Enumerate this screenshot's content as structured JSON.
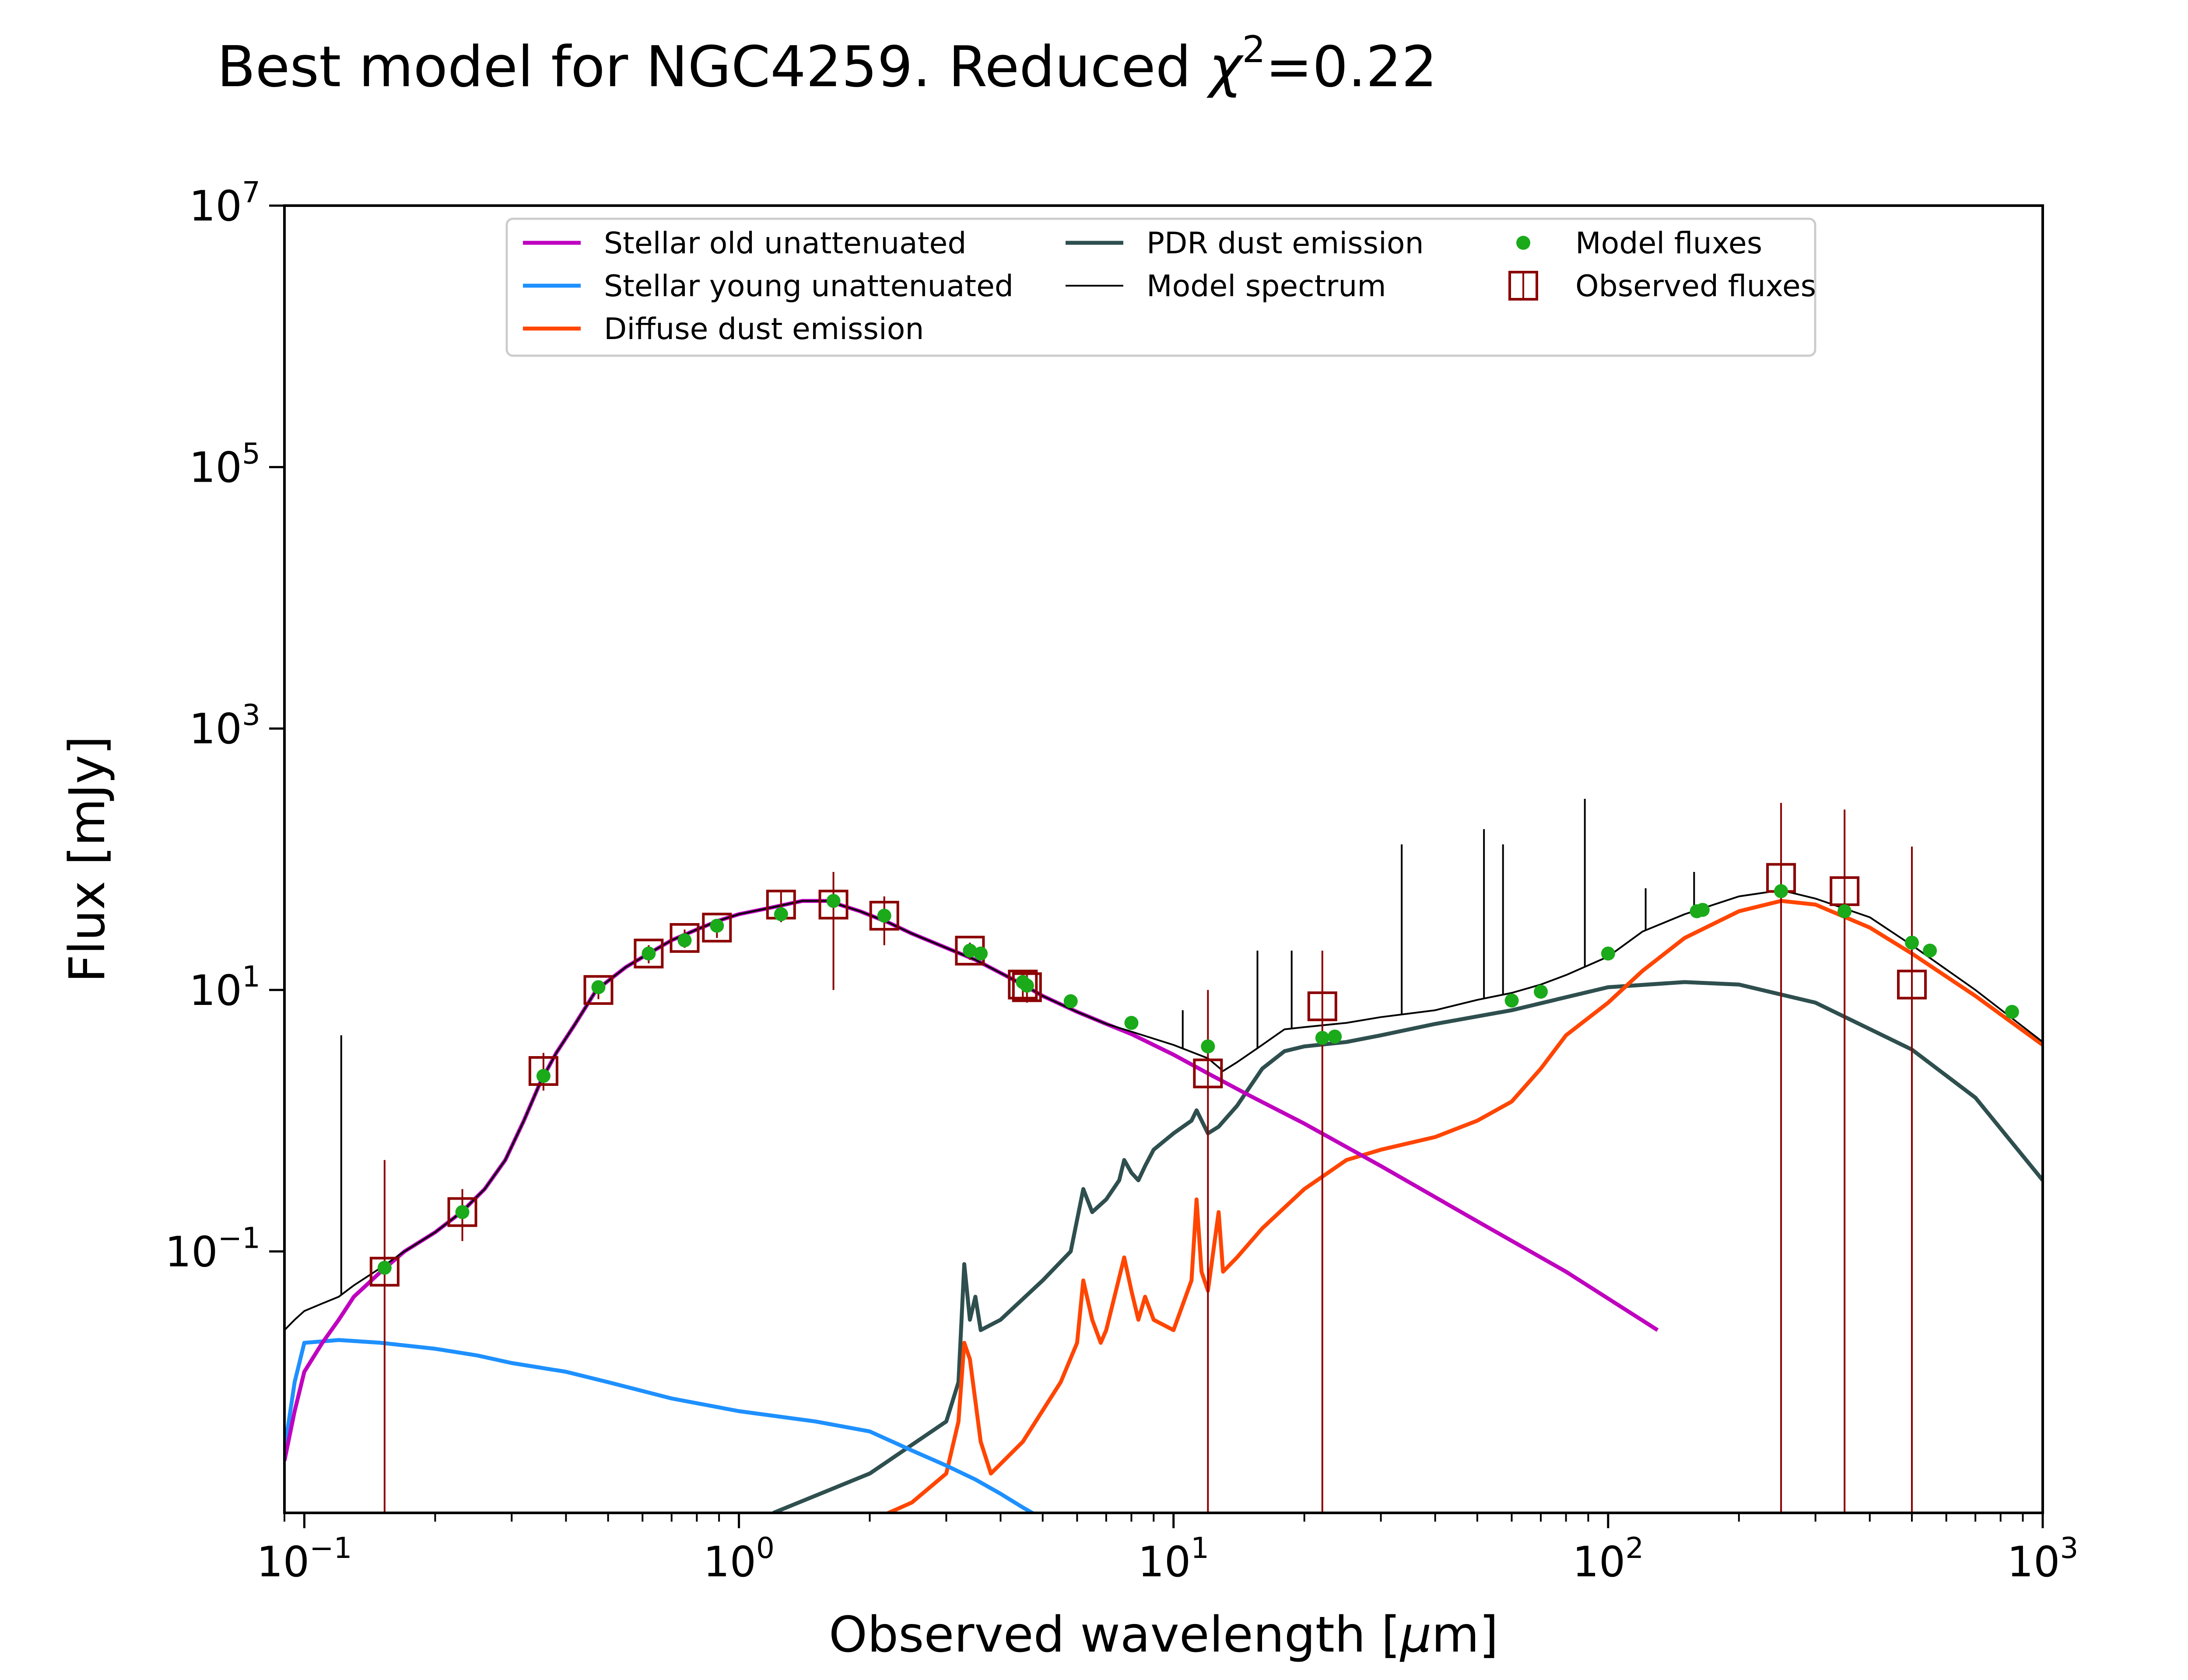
{
  "chart_data": {
    "type": "line",
    "title": "Best model for NGC4259. Reduced χ²=0.22",
    "title_parts": {
      "prefix": "Best model for NGC4259. Reduced ",
      "chi": "χ",
      "exp": "2",
      "suffix": "=0.22"
    },
    "xlabel": "Observed wavelength [μm]",
    "xlabel_parts": {
      "prefix": "Observed wavelength [",
      "mu": "μ",
      "suffix": "m]"
    },
    "ylabel": "Flux [mJy]",
    "x_scale": "log",
    "y_scale": "log",
    "xlim": [
      0.09,
      1000
    ],
    "ylim": [
      0.001,
      10000000
    ],
    "x_ticks": [
      {
        "value": 0.1,
        "base": "10",
        "exp": "−1"
      },
      {
        "value": 1,
        "base": "10",
        "exp": "0"
      },
      {
        "value": 10,
        "base": "10",
        "exp": "1"
      },
      {
        "value": 100,
        "base": "10",
        "exp": "2"
      },
      {
        "value": 1000,
        "base": "10",
        "exp": "3"
      }
    ],
    "y_ticks": [
      {
        "value": 0.1,
        "base": "10",
        "exp": "−1"
      },
      {
        "value": 10,
        "base": "10",
        "exp": "1"
      },
      {
        "value": 1000,
        "base": "10",
        "exp": "3"
      },
      {
        "value": 100000,
        "base": "10",
        "exp": "5"
      },
      {
        "value": 10000000,
        "base": "10",
        "exp": "7"
      }
    ],
    "legend": {
      "placement": "top-center",
      "entries": [
        {
          "label": "Stellar old unattenuated",
          "kind": "line",
          "color": "#bf00bf"
        },
        {
          "label": "Stellar young unattenuated",
          "kind": "line",
          "color": "#1e90ff"
        },
        {
          "label": "Diffuse dust emission",
          "kind": "line",
          "color": "#ff4500"
        },
        {
          "label": "PDR dust emission",
          "kind": "line",
          "color": "#2f4f4f"
        },
        {
          "label": "Model spectrum",
          "kind": "thinline",
          "color": "#000000"
        },
        {
          "label": "Model fluxes",
          "kind": "dot",
          "color": "#1aaa1a"
        },
        {
          "label": "Observed fluxes",
          "kind": "square",
          "color": "#8b0000"
        }
      ]
    },
    "series": [
      {
        "name": "Stellar old unattenuated",
        "color": "#bf00bf",
        "x": [
          0.09,
          0.095,
          0.1,
          0.11,
          0.12,
          0.13,
          0.15,
          0.17,
          0.2,
          0.23,
          0.26,
          0.29,
          0.32,
          0.35,
          0.38,
          0.42,
          0.47,
          0.55,
          0.62,
          0.7,
          0.8,
          0.9,
          1.0,
          1.2,
          1.4,
          1.6,
          1.9,
          2.2,
          2.5,
          3.0,
          3.5,
          4.0,
          4.5,
          5.0,
          6.0,
          7.0,
          8.0,
          10,
          12,
          15,
          20,
          30,
          50,
          80,
          130
        ],
        "y": [
          0.0025,
          0.006,
          0.012,
          0.02,
          0.03,
          0.045,
          0.07,
          0.1,
          0.14,
          0.2,
          0.3,
          0.5,
          1.0,
          2.0,
          3.3,
          5.5,
          10,
          15,
          19,
          24,
          29,
          34,
          38,
          43,
          48,
          48,
          40,
          33,
          27,
          21,
          17,
          13.5,
          11,
          9,
          6.8,
          5.5,
          4.6,
          3.2,
          2.3,
          1.55,
          0.95,
          0.45,
          0.17,
          0.07,
          0.025
        ]
      },
      {
        "name": "Stellar young unattenuated",
        "color": "#1e90ff",
        "x": [
          0.09,
          0.095,
          0.1,
          0.12,
          0.15,
          0.2,
          0.25,
          0.3,
          0.4,
          0.5,
          0.7,
          1.0,
          1.5,
          2.0,
          2.5,
          3.0,
          3.5,
          4.0,
          4.5,
          5.0
        ],
        "y": [
          0.003,
          0.01,
          0.02,
          0.021,
          0.02,
          0.018,
          0.016,
          0.014,
          0.012,
          0.01,
          0.0075,
          0.006,
          0.005,
          0.0042,
          0.003,
          0.0023,
          0.0018,
          0.0014,
          0.0011,
          0.0009
        ]
      },
      {
        "name": "Diffuse dust emission",
        "color": "#ff4500",
        "x": [
          1.9,
          2.5,
          3.0,
          3.2,
          3.3,
          3.4,
          3.6,
          3.8,
          4.5,
          5.5,
          6.0,
          6.2,
          6.5,
          6.8,
          7.0,
          7.7,
          8.0,
          8.3,
          8.6,
          9.0,
          10,
          11,
          11.3,
          11.6,
          12,
          12.7,
          13,
          14,
          16,
          20,
          25,
          30,
          40,
          50,
          60,
          70,
          80,
          100,
          120,
          150,
          200,
          250,
          300,
          400,
          500,
          700,
          1000
        ],
        "y": [
          0.0008,
          0.0012,
          0.002,
          0.005,
          0.02,
          0.015,
          0.0035,
          0.002,
          0.0035,
          0.01,
          0.02,
          0.06,
          0.03,
          0.02,
          0.025,
          0.09,
          0.05,
          0.03,
          0.045,
          0.03,
          0.025,
          0.06,
          0.25,
          0.07,
          0.05,
          0.2,
          0.07,
          0.09,
          0.15,
          0.3,
          0.5,
          0.6,
          0.75,
          1.0,
          1.4,
          2.5,
          4.5,
          8,
          14,
          25,
          40,
          48,
          45,
          30,
          19,
          9,
          3.8
        ]
      },
      {
        "name": "PDR dust emission",
        "color": "#2f4f4f",
        "x": [
          1.2,
          2.0,
          3.0,
          3.2,
          3.3,
          3.4,
          3.5,
          3.6,
          4.0,
          5.0,
          5.8,
          6.2,
          6.5,
          7.0,
          7.5,
          7.7,
          8.0,
          8.3,
          8.6,
          9.0,
          10,
          11,
          11.3,
          12,
          12.7,
          14,
          16,
          18,
          20,
          25,
          30,
          40,
          60,
          80,
          100,
          150,
          200,
          300,
          500,
          700,
          1000
        ],
        "y": [
          0.001,
          0.002,
          0.005,
          0.01,
          0.08,
          0.03,
          0.045,
          0.025,
          0.03,
          0.06,
          0.1,
          0.3,
          0.2,
          0.25,
          0.35,
          0.5,
          0.4,
          0.35,
          0.45,
          0.6,
          0.8,
          1.0,
          1.2,
          0.8,
          0.9,
          1.3,
          2.5,
          3.4,
          3.7,
          4.0,
          4.5,
          5.5,
          7,
          8.8,
          10.5,
          11.5,
          11,
          8,
          3.5,
          1.5,
          0.35
        ]
      },
      {
        "name": "Model spectrum",
        "color": "#000000",
        "x": [
          0.09,
          0.095,
          0.1,
          0.11,
          0.12,
          0.13,
          0.15,
          0.17,
          0.2,
          0.23,
          0.26,
          0.29,
          0.32,
          0.35,
          0.38,
          0.42,
          0.47,
          0.55,
          0.62,
          0.7,
          0.8,
          0.9,
          1.0,
          1.2,
          1.4,
          1.6,
          1.9,
          2.2,
          2.5,
          3.0,
          3.5,
          4.0,
          4.5,
          5.0,
          6.0,
          7.0,
          8.0,
          10,
          12,
          13,
          14,
          16,
          18,
          20,
          25,
          30,
          40,
          50,
          60,
          70,
          80,
          100,
          120,
          150,
          200,
          250,
          300,
          400,
          500,
          700,
          1000
        ],
        "y": [
          0.025,
          0.03,
          0.035,
          0.04,
          0.045,
          0.055,
          0.075,
          0.1,
          0.14,
          0.2,
          0.3,
          0.5,
          1.0,
          2.0,
          3.3,
          5.5,
          10,
          15,
          19,
          24,
          29,
          34,
          38,
          43,
          48,
          48,
          40,
          33,
          27,
          21,
          17,
          13.5,
          11,
          9,
          6.8,
          5.5,
          4.8,
          3.8,
          3.0,
          2.4,
          2.8,
          3.8,
          5,
          5.2,
          5.6,
          6.2,
          7,
          8.4,
          9.5,
          11,
          13,
          18,
          28,
          38,
          52,
          58,
          50,
          36,
          22,
          10,
          4
        ]
      }
    ],
    "spectrum_lines": [
      {
        "x": 0.1216,
        "y_top": 4.5
      },
      {
        "x": 10.5,
        "y_top": 7
      },
      {
        "x": 15.6,
        "y_top": 20
      },
      {
        "x": 18.7,
        "y_top": 20
      },
      {
        "x": 33.5,
        "y_top": 130
      },
      {
        "x": 51.8,
        "y_top": 170
      },
      {
        "x": 57.3,
        "y_top": 130
      },
      {
        "x": 88.4,
        "y_top": 290
      },
      {
        "x": 122,
        "y_top": 60
      },
      {
        "x": 157.7,
        "y_top": 80
      }
    ],
    "model_fluxes": {
      "color": "#1aaa1a",
      "x": [
        0.153,
        0.231,
        0.355,
        0.475,
        0.62,
        0.75,
        0.89,
        1.25,
        1.65,
        2.16,
        3.4,
        3.6,
        4.5,
        4.6,
        5.8,
        8.0,
        12,
        22,
        23.5,
        60,
        70,
        100,
        160,
        165,
        250,
        350,
        500,
        550,
        850
      ],
      "y": [
        0.075,
        0.2,
        2.2,
        10.5,
        19,
        24,
        31,
        38,
        48,
        37,
        20,
        19,
        11.5,
        10.8,
        8.2,
        5.6,
        3.7,
        4.3,
        4.4,
        8.3,
        9.7,
        19,
        40,
        41,
        57,
        40,
        23,
        20,
        6.8
      ]
    },
    "observed_fluxes": {
      "color": "#8b0000",
      "points": [
        {
          "x": 0.153,
          "y": 0.07,
          "ylo": 0.001,
          "yhi": 0.5
        },
        {
          "x": 0.231,
          "y": 0.2,
          "ylo": 0.12,
          "yhi": 0.3
        },
        {
          "x": 0.355,
          "y": 2.4,
          "ylo": 1.7,
          "yhi": 3.3
        },
        {
          "x": 0.475,
          "y": 10,
          "ylo": 8.5,
          "yhi": 11.5
        },
        {
          "x": 0.62,
          "y": 19,
          "ylo": 16,
          "yhi": 22
        },
        {
          "x": 0.75,
          "y": 25,
          "ylo": 21,
          "yhi": 29
        },
        {
          "x": 0.89,
          "y": 30,
          "ylo": 25,
          "yhi": 35
        },
        {
          "x": 1.25,
          "y": 45,
          "ylo": 33,
          "yhi": 57
        },
        {
          "x": 1.65,
          "y": 45,
          "ylo": 10,
          "yhi": 80
        },
        {
          "x": 2.16,
          "y": 37,
          "ylo": 22,
          "yhi": 52
        },
        {
          "x": 3.4,
          "y": 20,
          "ylo": 17,
          "yhi": 23
        },
        {
          "x": 4.5,
          "y": 11,
          "ylo": 8.5,
          "yhi": 13.5
        },
        {
          "x": 4.6,
          "y": 10.5,
          "ylo": 8,
          "yhi": 13
        },
        {
          "x": 12,
          "y": 2.3,
          "ylo": 0.001,
          "yhi": 10
        },
        {
          "x": 22,
          "y": 7.5,
          "ylo": 0.001,
          "yhi": 20
        },
        {
          "x": 250,
          "y": 72,
          "ylo": 0.001,
          "yhi": 270
        },
        {
          "x": 350,
          "y": 57,
          "ylo": 0.001,
          "yhi": 240
        },
        {
          "x": 500,
          "y": 11,
          "ylo": 0.001,
          "yhi": 125
        }
      ]
    }
  }
}
